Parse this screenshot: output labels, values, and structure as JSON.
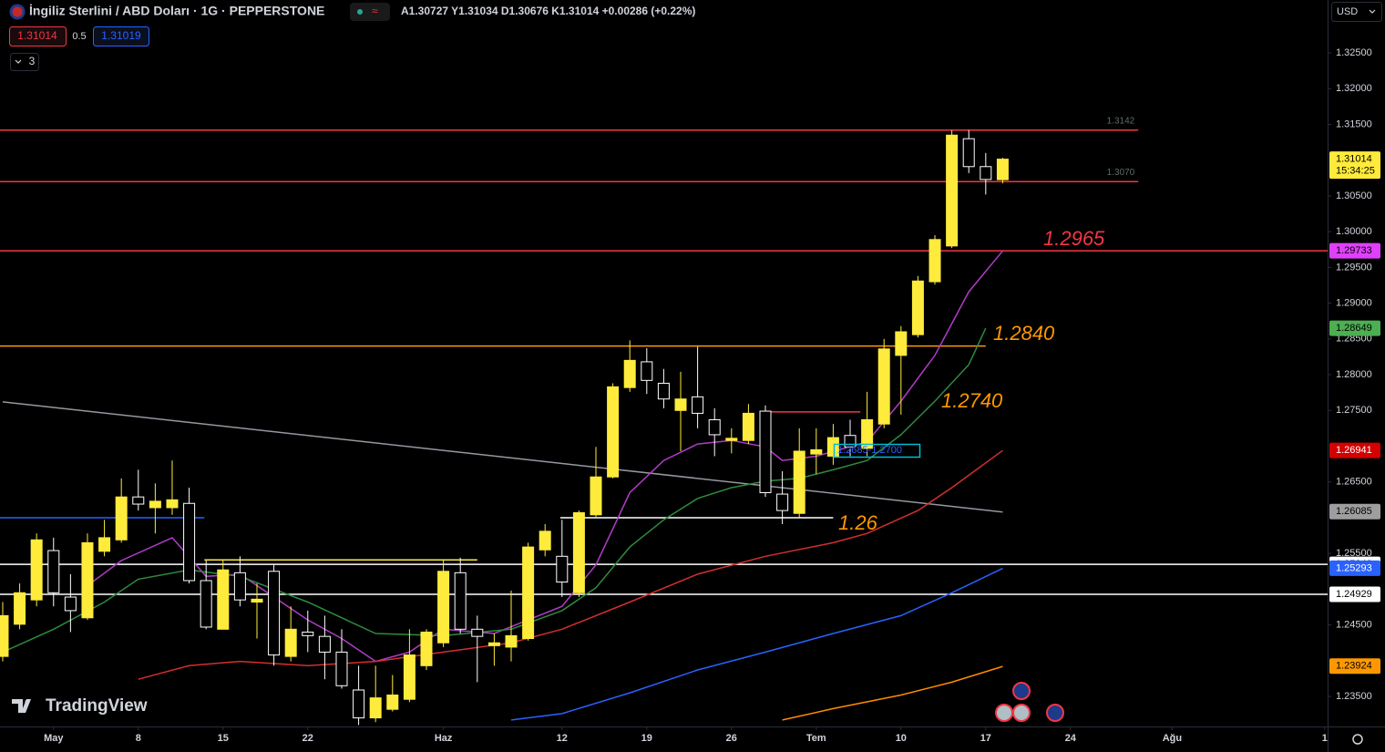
{
  "header": {
    "symbol": "İngiliz Sterlini / ABD Doları · 1G · PEPPERSTONE",
    "ohlc": "A1.30727 Y1.31034 D1.30676 K1.31014 +0.00286 (+0.22%)",
    "bid": "1.31014",
    "spread": "0.5",
    "ask": "1.31019",
    "indicators": "3",
    "currency": "USD",
    "countdown": "15:34:25",
    "logo": "TradingView"
  },
  "chart_data": {
    "type": "candlestick",
    "x": [
      0,
      1,
      2,
      3,
      4,
      5,
      6,
      7,
      8,
      9,
      10,
      11,
      12,
      13,
      14,
      15,
      16,
      17,
      18,
      19,
      20,
      21,
      22,
      23,
      24,
      25,
      26,
      27,
      28,
      29,
      30,
      31,
      32,
      33,
      34,
      35,
      36,
      37,
      38,
      39,
      40,
      41,
      42,
      43,
      44,
      45,
      46,
      47,
      48,
      49,
      50,
      51,
      52,
      53,
      54,
      55,
      56,
      57,
      58,
      59
    ],
    "open": [
      1.2406,
      1.2451,
      1.2485,
      1.2554,
      1.2489,
      1.246,
      1.2553,
      1.2569,
      1.2629,
      1.2614,
      1.2614,
      1.262,
      1.2512,
      1.2444,
      1.2523,
      1.2482,
      1.2525,
      1.2406,
      1.244,
      1.2434,
      1.2412,
      1.2359,
      1.232,
      1.2332,
      1.2346,
      1.2393,
      1.2425,
      1.2523,
      1.2444,
      1.2421,
      1.2419,
      1.2431,
      1.2555,
      1.2546,
      1.2495,
      1.2604,
      1.2657,
      1.2782,
      1.2818,
      1.2788,
      1.275,
      1.2769,
      1.2737,
      1.2708,
      1.2708,
      1.2749,
      1.2633,
      1.2606,
      1.2689,
      1.2686,
      1.2715,
      1.2697,
      1.2731,
      1.2827,
      1.2856,
      1.293,
      1.298,
      1.313,
      1.3091,
      1.30727
    ],
    "high": [
      1.2482,
      1.2508,
      1.2578,
      1.2572,
      1.2521,
      1.2578,
      1.2597,
      1.2655,
      1.2667,
      1.2648,
      1.268,
      1.2642,
      1.254,
      1.254,
      1.2546,
      1.2508,
      1.2534,
      1.2476,
      1.247,
      1.2463,
      1.2444,
      1.2393,
      1.2393,
      1.238,
      1.2444,
      1.2444,
      1.254,
      1.2544,
      1.2463,
      1.2438,
      1.2498,
      1.2565,
      1.2591,
      1.2597,
      1.261,
      1.2699,
      1.2788,
      1.2848,
      1.2837,
      1.2808,
      1.2804,
      1.2839,
      1.2753,
      1.2725,
      1.2759,
      1.2757,
      1.2665,
      1.2725,
      1.2725,
      1.2731,
      1.2737,
      1.2776,
      1.285,
      1.2868,
      1.2938,
      1.2995,
      1.3142,
      1.3142,
      1.311,
      1.31034
    ],
    "low": [
      1.2399,
      1.2444,
      1.2476,
      1.2476,
      1.244,
      1.2457,
      1.2546,
      1.2565,
      1.261,
      1.2578,
      1.2604,
      1.2508,
      1.2444,
      1.2444,
      1.2476,
      1.2431,
      1.2393,
      1.2399,
      1.2412,
      1.2374,
      1.2361,
      1.231,
      1.2314,
      1.2329,
      1.2342,
      1.2387,
      1.2419,
      1.2438,
      1.237,
      1.2393,
      1.2399,
      1.2428,
      1.2546,
      1.2489,
      1.2489,
      1.26,
      1.2655,
      1.2776,
      1.2773,
      1.2753,
      1.2693,
      1.2725,
      1.2686,
      1.269,
      1.2703,
      1.2629,
      1.2591,
      1.26,
      1.2661,
      1.2674,
      1.2686,
      1.2686,
      1.2725,
      1.2744,
      1.2852,
      1.2926,
      1.2977,
      1.3082,
      1.3052,
      1.30676
    ],
    "close": [
      1.2463,
      1.2495,
      1.2569,
      1.2495,
      1.247,
      1.2565,
      1.2572,
      1.2629,
      1.2619,
      1.2623,
      1.2625,
      1.2512,
      1.2447,
      1.2527,
      1.2485,
      1.2486,
      1.2408,
      1.2444,
      1.2435,
      1.2412,
      1.2365,
      1.232,
      1.2348,
      1.2352,
      1.2408,
      1.244,
      1.2525,
      1.2444,
      1.2434,
      1.2425,
      1.2435,
      1.2559,
      1.2581,
      1.251,
      1.2607,
      1.2657,
      1.2783,
      1.282,
      1.2792,
      1.2766,
      1.2766,
      1.2746,
      1.2716,
      1.2711,
      1.2746,
      1.2635,
      1.261,
      1.2693,
      1.2695,
      1.2712,
      1.2699,
      1.2737,
      1.2836,
      1.286,
      1.2931,
      1.2989,
      1.3135,
      1.3091,
      1.3073,
      1.31014
    ],
    "up_color": "#ffeb3b",
    "down_color": "#000000",
    "down_border": "#ffffff",
    "xlim": [
      -0.16,
      78.17
    ],
    "xticks": [
      {
        "value": 3,
        "label": "May"
      },
      {
        "value": 8,
        "label": "8"
      },
      {
        "value": 13,
        "label": "15"
      },
      {
        "value": 18,
        "label": "22"
      },
      {
        "value": 26,
        "label": "Haz"
      },
      {
        "value": 33,
        "label": "12"
      },
      {
        "value": 38,
        "label": "19"
      },
      {
        "value": 43,
        "label": "26"
      },
      {
        "value": 48,
        "label": "Tem"
      },
      {
        "value": 53,
        "label": "10"
      },
      {
        "value": 58,
        "label": "17"
      },
      {
        "value": 63,
        "label": "24"
      },
      {
        "value": 69,
        "label": "Ağu"
      },
      {
        "value": 78,
        "label": "1"
      }
    ],
    "ylim": [
      1.2308,
      1.3324
    ],
    "yticks": [
      {
        "value": 1.325,
        "label": "1.32500"
      },
      {
        "value": 1.32,
        "label": "1.32000"
      },
      {
        "value": 1.315,
        "label": "1.31500"
      },
      {
        "value": 1.305,
        "label": "1.30500"
      },
      {
        "value": 1.3,
        "label": "1.30000"
      },
      {
        "value": 1.295,
        "label": "1.29500"
      },
      {
        "value": 1.29,
        "label": "1.29000"
      },
      {
        "value": 1.285,
        "label": "1.28500"
      },
      {
        "value": 1.28,
        "label": "1.28000"
      },
      {
        "value": 1.275,
        "label": "1.27500"
      },
      {
        "value": 1.265,
        "label": "1.26500"
      },
      {
        "value": 1.255,
        "label": "1.25500"
      },
      {
        "value": 1.245,
        "label": "1.24500"
      },
      {
        "value": 1.235,
        "label": "1.23500"
      }
    ],
    "overlays": [
      {
        "color": "#9598a1",
        "x": [
          0,
          59
        ],
        "values": [
          1.2762,
          1.2608
        ]
      },
      {
        "color": "#b03cc8",
        "x": [
          5,
          7,
          10,
          12,
          14,
          16,
          18,
          20,
          22,
          24,
          26,
          29,
          31,
          33,
          35,
          37,
          39,
          41,
          43,
          45,
          46,
          48,
          51,
          53,
          55,
          57,
          59
        ],
        "values": [
          1.2505,
          1.254,
          1.2572,
          1.2518,
          1.2521,
          1.2489,
          1.2457,
          1.2431,
          1.2399,
          1.2412,
          1.2444,
          1.2438,
          1.2457,
          1.2476,
          1.2534,
          1.2635,
          1.268,
          1.2703,
          1.2708,
          1.2699,
          1.268,
          1.2686,
          1.2706,
          1.2763,
          1.2827,
          1.2916,
          1.2973
        ]
      },
      {
        "color": "#2e8b3e",
        "x": [
          0,
          3,
          6,
          8,
          11,
          14,
          18,
          22,
          26,
          30,
          33,
          35,
          37,
          39,
          41,
          43,
          45,
          47,
          49,
          51,
          53,
          55,
          57,
          58
        ],
        "values": [
          1.2412,
          1.2444,
          1.2482,
          1.2514,
          1.2527,
          1.2518,
          1.2482,
          1.2438,
          1.2435,
          1.2444,
          1.247,
          1.2502,
          1.2559,
          1.2597,
          1.2627,
          1.2642,
          1.2651,
          1.2655,
          1.2667,
          1.268,
          1.2716,
          1.2763,
          1.2814,
          1.2865
        ]
      },
      {
        "color": "#d32f2f",
        "x": [
          8,
          11,
          14,
          18,
          22,
          26,
          30,
          33,
          37,
          41,
          45,
          49,
          51,
          54,
          56,
          59
        ],
        "values": [
          1.2374,
          1.2393,
          1.2399,
          1.2393,
          1.2399,
          1.2412,
          1.2425,
          1.2444,
          1.2482,
          1.2521,
          1.2546,
          1.2565,
          1.2578,
          1.261,
          1.2642,
          1.2694
        ]
      },
      {
        "color": "#2962ff",
        "x": [
          30,
          33,
          37,
          41,
          45,
          49,
          53,
          56,
          59
        ],
        "values": [
          1.2317,
          1.2326,
          1.2355,
          1.2387,
          1.2412,
          1.2438,
          1.2463,
          1.2495,
          1.2529
        ]
      },
      {
        "color": "#ff8c00",
        "x": [
          46,
          49,
          53,
          56,
          59
        ],
        "values": [
          1.2317,
          1.2333,
          1.2352,
          1.237,
          1.2392
        ]
      }
    ],
    "levels": [
      {
        "value": 1.3142,
        "color": "#f23645",
        "x": [
          -0.16,
          67
        ],
        "tagged": true
      },
      {
        "value": 1.307,
        "color": "#f23645",
        "x": [
          -0.16,
          67
        ],
        "label": "1.3070"
      },
      {
        "value": 1.29733,
        "color": "#f23645"
      },
      {
        "value": 1.284,
        "color": "#ff9800",
        "x": [
          -0.16,
          58
        ]
      },
      {
        "value": 1.25348,
        "color": "#ffffff"
      },
      {
        "value": 1.24929,
        "color": "#ffffff"
      },
      {
        "value": 1.26,
        "color": "#2962ff",
        "x": [
          -0.16,
          11.9
        ]
      },
      {
        "value": 1.26,
        "color": "#ffffff",
        "x": [
          32.9,
          49
        ]
      },
      {
        "value": 1.2541,
        "color": "#ffeb3b",
        "x": [
          11.9,
          28
        ]
      },
      {
        "value": 1.2748,
        "color": "#f23645",
        "x": [
          44.7,
          50.6
        ]
      }
    ],
    "annotations": [
      {
        "text": "1.2965",
        "color": "#f23645"
      },
      {
        "text": "1.2840",
        "color": "#ff9800"
      },
      {
        "text": "1.2740",
        "color": "#ff9800"
      },
      {
        "text": "1.26",
        "color": "#ff9800"
      },
      {
        "text": "1.2685-1.2700",
        "color": "#2962ff"
      }
    ],
    "price_labels": [
      {
        "value": 1.31014,
        "color": "#ffeb3b",
        "text_color": "#000000"
      },
      {
        "value": 1.29733,
        "color": "#e040fb",
        "text_color": "#000000"
      },
      {
        "value": 1.28649,
        "color": "#4caf50",
        "text_color": "#000000"
      },
      {
        "value": 1.26941,
        "color": "#d50000",
        "text_color": "#ffffff"
      },
      {
        "value": 1.26085,
        "color": "#9e9e9e",
        "text_color": "#000000"
      },
      {
        "value": 1.25348,
        "color": "#ffffff",
        "text_color": "#000000"
      },
      {
        "value": 1.25293,
        "color": "#2962ff",
        "text_color": "#ffffff"
      },
      {
        "value": 1.24929,
        "color": "#ffffff",
        "text_color": "#000000"
      },
      {
        "value": 1.23924,
        "color": "#ff9800",
        "text_color": "#000000"
      }
    ]
  }
}
